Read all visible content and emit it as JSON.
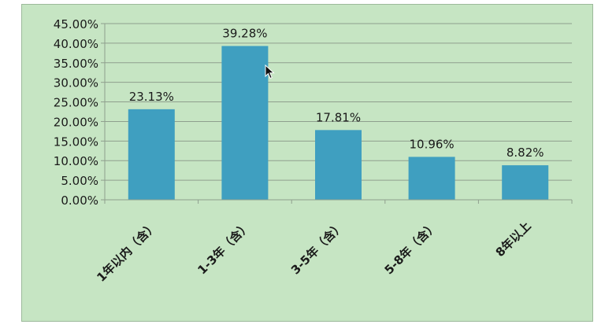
{
  "chart_data": {
    "type": "bar",
    "title": "",
    "xlabel": "",
    "ylabel": "",
    "categories": [
      "1年以内（含）",
      "1-3年（含）",
      "3-5年（含）",
      "5-8年（含）",
      "8年以上"
    ],
    "values": [
      23.13,
      39.28,
      17.81,
      10.96,
      8.82
    ],
    "value_labels": [
      "23.13%",
      "39.28%",
      "17.81%",
      "10.96%",
      "8.82%"
    ],
    "ylim": [
      0,
      45
    ],
    "yticks": [
      0,
      5,
      10,
      15,
      20,
      25,
      30,
      35,
      40,
      45
    ],
    "ytick_labels": [
      "0.00%",
      "5.00%",
      "10.00%",
      "15.00%",
      "20.00%",
      "25.00%",
      "30.00%",
      "35.00%",
      "40.00%",
      "45.00%"
    ],
    "grid": true,
    "legend": "none"
  },
  "colors": {
    "plot_background": "#c6e5c3",
    "bar": "#3f9fc0",
    "gridline": "#8f9f8e",
    "text": "#1a1a1a"
  },
  "icons": {
    "cursor": "mouse-pointer-icon"
  }
}
